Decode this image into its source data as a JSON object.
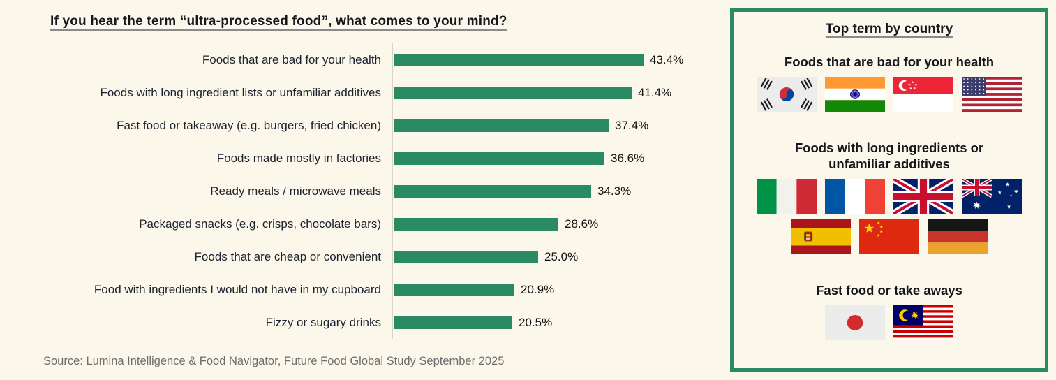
{
  "title": "If you hear the term “ultra-processed food”, what comes to your mind?",
  "source": "Source: Lumina Intelligence & Food Navigator, Future Food Global Study September 2025",
  "colors": {
    "bar_green": "#2a8a64",
    "background_cream": "#fbf7ea",
    "panel_border_green": "#2a8a64"
  },
  "chart_data": {
    "type": "bar",
    "orientation": "horizontal",
    "title": "If you hear the term “ultra-processed food”, what comes to your mind?",
    "categories": [
      "Foods that are bad for your health",
      "Foods with long ingredient lists or unfamiliar additives",
      "Fast food or takeaway (e.g. burgers, fried chicken)",
      "Foods made mostly in factories",
      "Ready meals / microwave meals",
      "Packaged snacks (e.g. crisps, chocolate bars)",
      "Foods that are cheap or convenient",
      "Food with ingredients I would not have in my cupboard",
      "Fizzy or sugary drinks"
    ],
    "values": [
      43.4,
      41.4,
      37.4,
      36.6,
      34.3,
      28.6,
      25.0,
      20.9,
      20.5
    ],
    "value_labels": [
      "43.4%",
      "41.4%",
      "37.4%",
      "36.6%",
      "34.3%",
      "28.6%",
      "25.0%",
      "20.9%",
      "20.5%"
    ],
    "xlabel": "",
    "ylabel": "",
    "xlim": [
      0,
      45
    ],
    "grid": false,
    "legend": false
  },
  "panel": {
    "title": "Top term by country",
    "sections": [
      {
        "heading": "Foods that are bad for your health",
        "countries": [
          "South Korea",
          "India",
          "Singapore",
          "United States"
        ],
        "flags": [
          "south-korea",
          "india",
          "singapore",
          "usa"
        ]
      },
      {
        "heading": "Foods with long ingredients or unfamiliar additives",
        "countries": [
          "Italy",
          "France",
          "United Kingdom",
          "Australia",
          "Spain",
          "China",
          "Germany"
        ],
        "flags": [
          "italy",
          "france",
          "uk",
          "australia",
          "spain",
          "china",
          "germany"
        ]
      },
      {
        "heading": "Fast food or take aways",
        "countries": [
          "Japan",
          "Malaysia"
        ],
        "flags": [
          "japan",
          "malaysia"
        ]
      }
    ]
  }
}
